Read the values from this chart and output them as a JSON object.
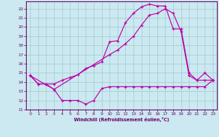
{
  "xlabel": "Windchill (Refroidissement éolien,°C)",
  "bg_color": "#cce8f0",
  "line_color": "#bb00aa",
  "grid_color": "#99cccc",
  "xlim": [
    -0.5,
    23.5
  ],
  "ylim": [
    11,
    22.8
  ],
  "xticks": [
    0,
    1,
    2,
    3,
    4,
    5,
    6,
    7,
    8,
    9,
    10,
    11,
    12,
    13,
    14,
    15,
    16,
    17,
    18,
    19,
    20,
    21,
    22,
    23
  ],
  "yticks": [
    11,
    12,
    13,
    14,
    15,
    16,
    17,
    18,
    19,
    20,
    21,
    22
  ],
  "series": {
    "line1_x": [
      0,
      1,
      2,
      3,
      4,
      5,
      6,
      7,
      8,
      9,
      10,
      11,
      12,
      13,
      14,
      15,
      16,
      17,
      18,
      19,
      20,
      21,
      22,
      23
    ],
    "line1_y": [
      14.7,
      13.8,
      13.8,
      13.2,
      12.0,
      12.0,
      12.0,
      11.6,
      12.0,
      13.3,
      13.5,
      13.5,
      13.5,
      13.5,
      13.5,
      13.5,
      13.5,
      13.5,
      13.5,
      13.5,
      13.5,
      13.5,
      13.5,
      14.2
    ],
    "line2_x": [
      0,
      1,
      2,
      3,
      4,
      5,
      6,
      7,
      8,
      9,
      10,
      11,
      12,
      13,
      14,
      15,
      16,
      17,
      18,
      19,
      20,
      21,
      22,
      23
    ],
    "line2_y": [
      14.7,
      13.8,
      13.8,
      13.8,
      14.2,
      14.5,
      14.8,
      15.5,
      15.8,
      16.2,
      18.4,
      18.5,
      20.5,
      21.5,
      22.2,
      22.5,
      22.3,
      22.3,
      19.8,
      19.8,
      15.0,
      14.2,
      14.2,
      14.2
    ],
    "line3_x": [
      0,
      3,
      10,
      11,
      12,
      13,
      14,
      15,
      16,
      17,
      18,
      19,
      20,
      21,
      22,
      23
    ],
    "line3_y": [
      14.7,
      13.2,
      17.0,
      17.5,
      18.2,
      19.0,
      20.2,
      21.3,
      21.5,
      22.0,
      21.5,
      19.5,
      14.7,
      14.2,
      15.0,
      14.2
    ]
  }
}
